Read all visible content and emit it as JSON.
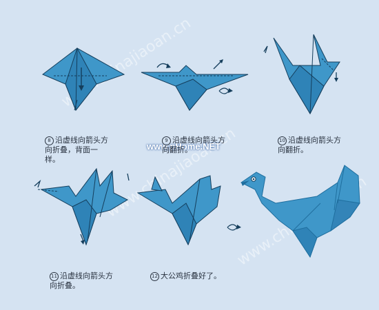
{
  "watermarks": [
    "www.chinajiaoan.cn",
    "www.chinajiaoan.cn",
    "www.chinajiaoan.cn"
  ],
  "watermark_phome": "www.pHome.NET",
  "steps": [
    {
      "num": "8",
      "text": "沿虚线向箭头方\n向折叠，背面一\n样。"
    },
    {
      "num": "9",
      "text": "沿虚线向箭头方\n向翻折。"
    },
    {
      "num": "10",
      "text": "沿虚线向箭头方\n向翻折。"
    },
    {
      "num": "11",
      "text": "沿虚线向箭头方\n向折叠。"
    },
    {
      "num": "12",
      "text": "大公鸡折叠好了。"
    }
  ],
  "colors": {
    "paper": "#3f97c9",
    "paper_dark": "#1f6e9e",
    "line": "#153e5c",
    "bg": "#d5e3f2"
  }
}
